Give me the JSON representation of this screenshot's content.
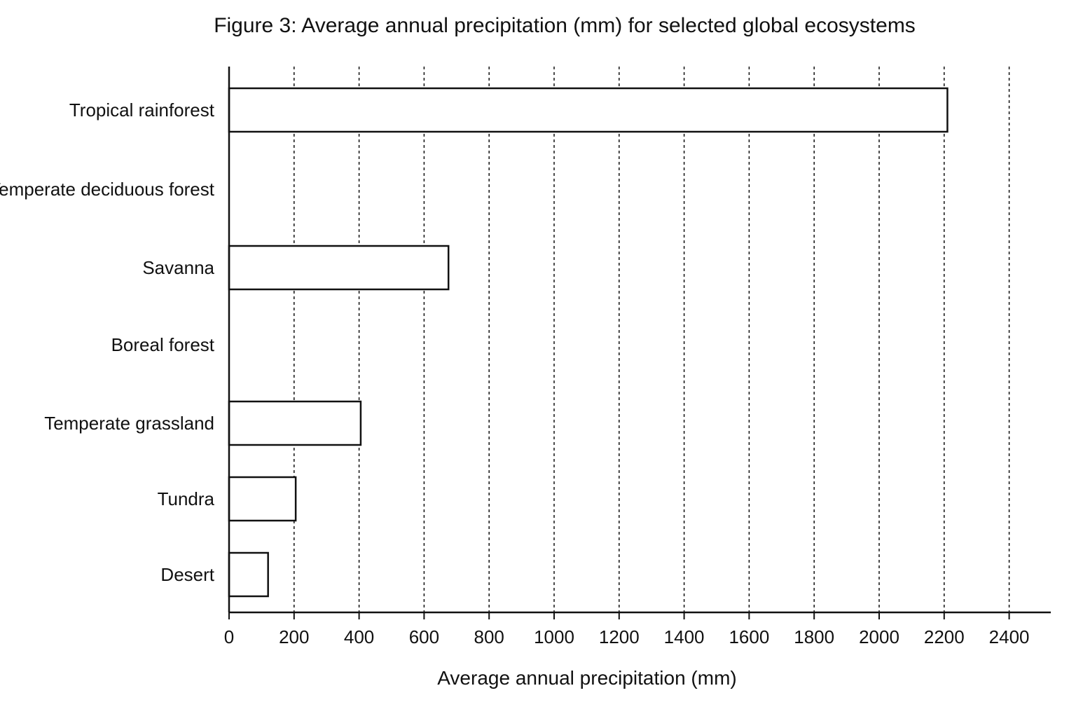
{
  "chart_data": {
    "type": "bar",
    "orientation": "horizontal",
    "title": "Figure 3: Average annual precipitation (mm) for selected global ecosystems",
    "xlabel": "Average annual precipitation (mm)",
    "ylabel": "",
    "categories": [
      "Tropical rainforest",
      "Temperate deciduous forest",
      "Savanna",
      "Boreal forest",
      "Temperate grassland",
      "Tundra",
      "Desert"
    ],
    "values": [
      2210,
      null,
      675,
      null,
      405,
      205,
      120
    ],
    "xlim": [
      0,
      2520
    ],
    "xticks": [
      0,
      200,
      400,
      600,
      800,
      1000,
      1200,
      1400,
      1600,
      1800,
      2000,
      2200,
      2400
    ],
    "xtick_labels": [
      "0",
      "200",
      "400",
      "600",
      "800",
      "1000",
      "1200",
      "1400",
      "1600",
      "1800",
      "2000",
      "2200",
      "2400"
    ],
    "grid": "vertical dashed",
    "legend": "none",
    "colors": {
      "bar_fill": "#ffffff",
      "bar_stroke": "#111111",
      "axis": "#111111",
      "grid": "#111111"
    }
  }
}
